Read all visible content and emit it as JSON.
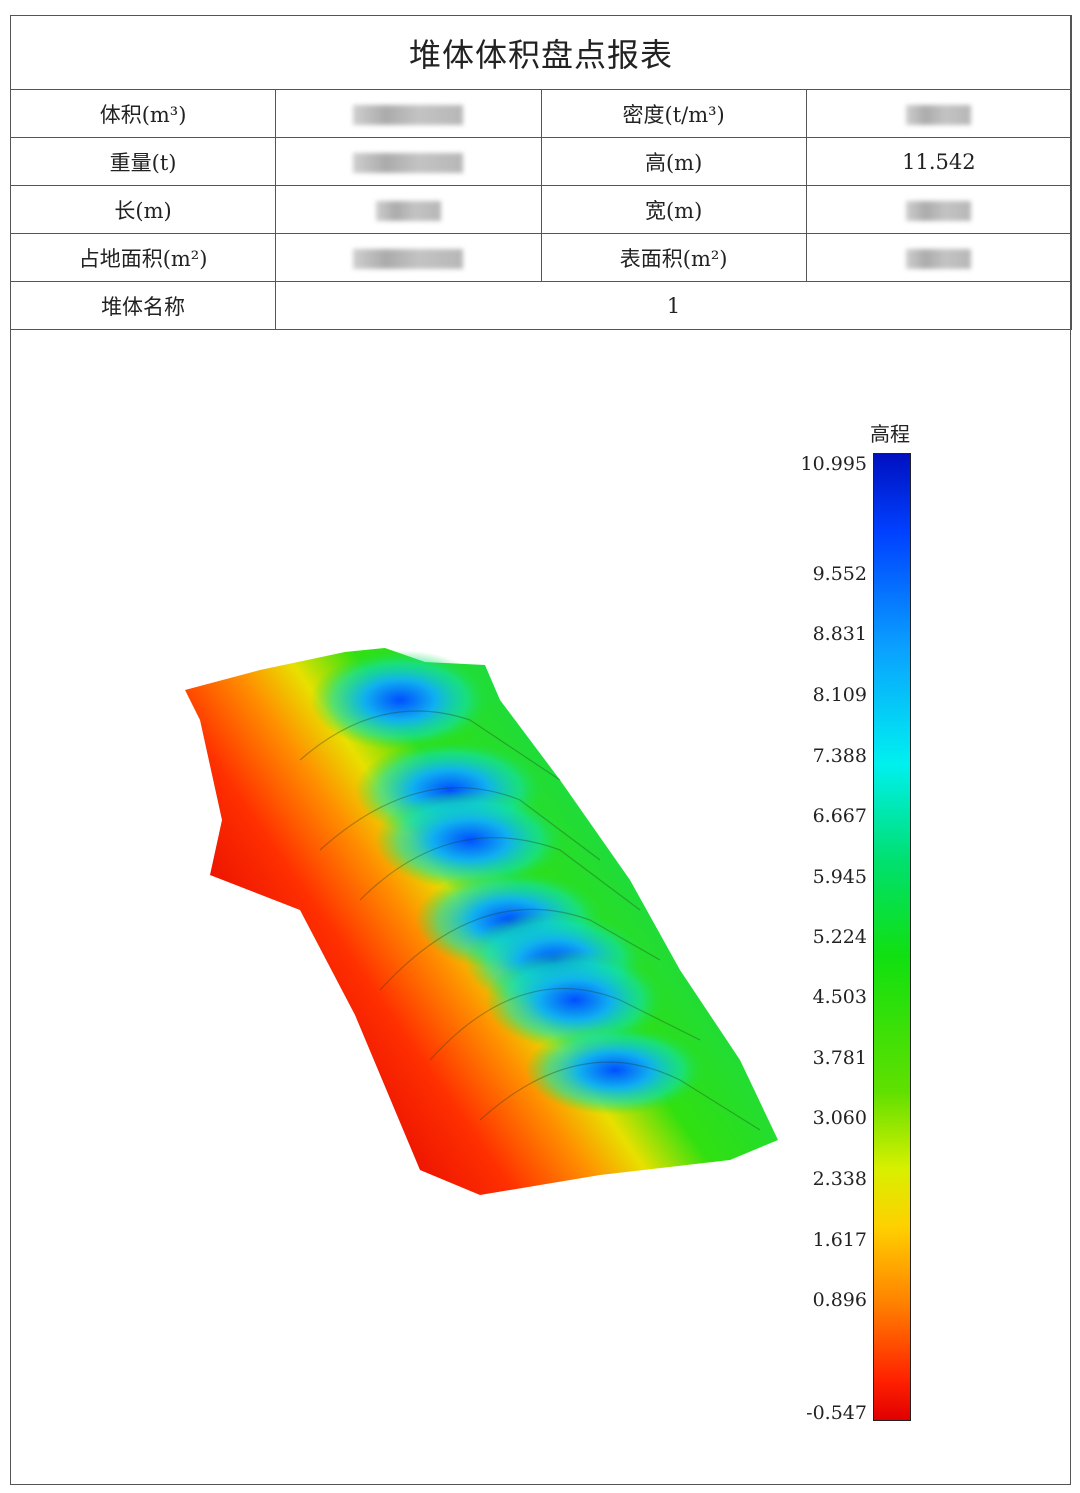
{
  "report": {
    "title": "堆体体积盘点报表",
    "rows": [
      {
        "label1": "体积(m³)",
        "value1": null,
        "label2": "密度(t/m³)",
        "value2": null
      },
      {
        "label1": "重量(t)",
        "value1": null,
        "label2": "高(m)",
        "value2": "11.542"
      },
      {
        "label1": "长(m)",
        "value1": null,
        "label2": "宽(m)",
        "value2": null
      },
      {
        "label1": "占地面积(m²)",
        "value1": null,
        "label2": "表面积(m²)",
        "value2": null
      }
    ],
    "name_label": "堆体名称",
    "name_value": "1"
  },
  "colorbar": {
    "title": "高程",
    "ticks": [
      "10.995",
      "9.552",
      "8.831",
      "8.109",
      "7.388",
      "6.667",
      "5.945",
      "5.224",
      "4.503",
      "3.781",
      "3.060",
      "2.338",
      "1.617",
      "0.896",
      "-0.547"
    ],
    "range": [
      -0.547,
      10.995
    ],
    "colors": [
      "#0010c0",
      "#0a90ff",
      "#00f0f0",
      "#10e010",
      "#d8f000",
      "#ff8000",
      "#e00000"
    ]
  }
}
